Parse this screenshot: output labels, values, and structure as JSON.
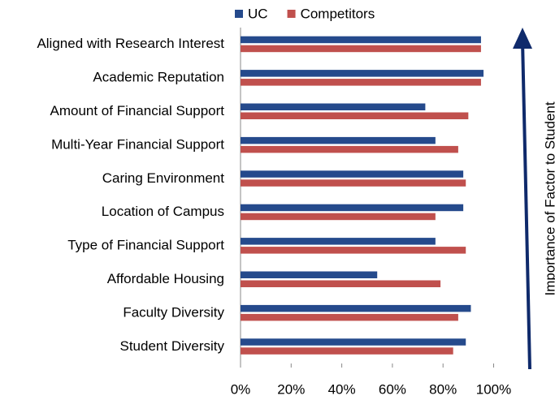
{
  "chart_data": {
    "type": "hbar",
    "categories": [
      "Aligned with Research Interest",
      "Academic Reputation",
      "Amount of Financial Support",
      "Multi-Year Financial Support",
      "Caring Environment",
      "Location of Campus",
      "Type of Financial Support",
      "Affordable Housing",
      "Faculty Diversity",
      "Student Diversity"
    ],
    "series": [
      {
        "name": "UC",
        "color": "#254a8c",
        "values": [
          95,
          96,
          73,
          77,
          88,
          88,
          77,
          54,
          91,
          89
        ]
      },
      {
        "name": "Competitors",
        "color": "#c0504d",
        "values": [
          95,
          95,
          90,
          86,
          89,
          77,
          89,
          79,
          86,
          84
        ]
      }
    ],
    "xlim": [
      0,
      100
    ],
    "xticks": [
      {
        "value": 0,
        "label": "0%"
      },
      {
        "value": 20,
        "label": "20%"
      },
      {
        "value": 40,
        "label": "40%"
      },
      {
        "value": 60,
        "label": "60%"
      },
      {
        "value": 80,
        "label": "80%"
      },
      {
        "value": 100,
        "label": "100%"
      }
    ],
    "annotation": "Importance of Factor to Student",
    "legend": "top"
  }
}
